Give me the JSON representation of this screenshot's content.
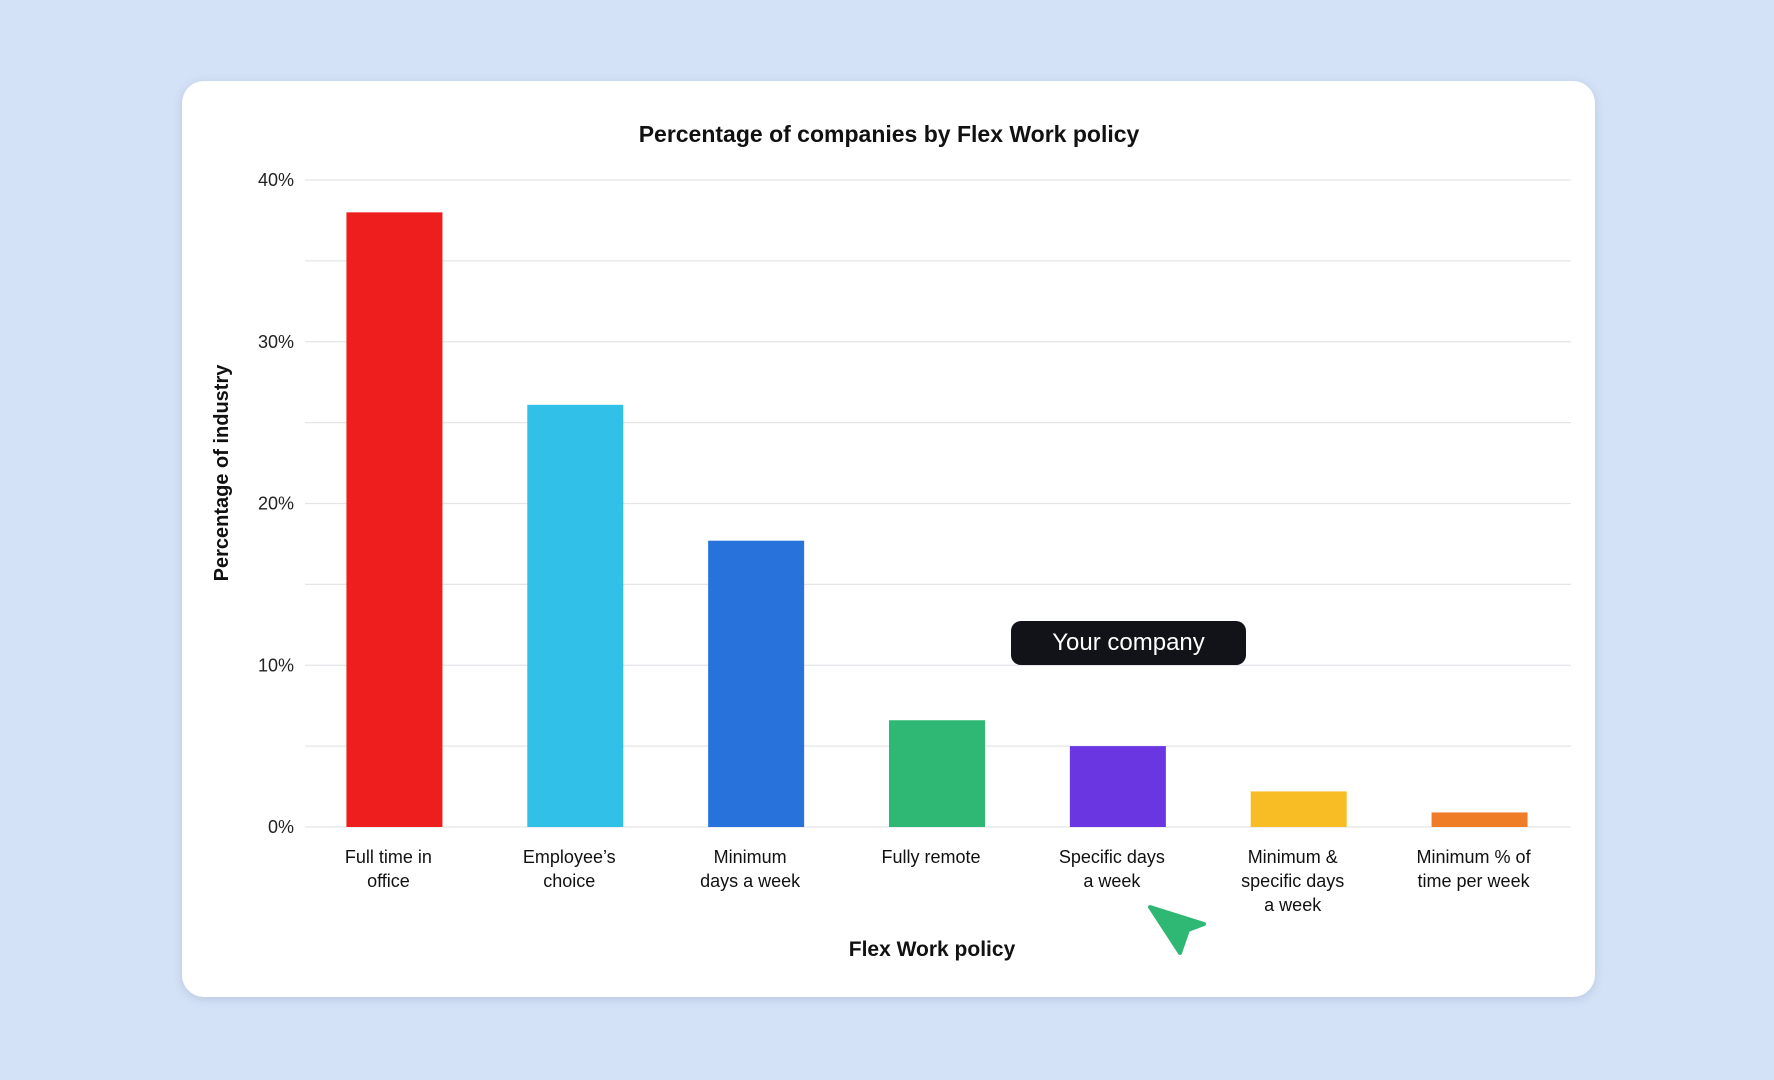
{
  "chart_data": {
    "type": "bar",
    "title": "Percentage of companies by Flex Work policy",
    "x_label": "Flex Work policy",
    "y_label": "Percentage of industry",
    "categories": [
      "Full time in\noffice",
      "Employee’s\nchoice",
      "Minimum\ndays a week",
      "Fully remote",
      "Specific days\na week",
      "Minimum &\nspecific days\na week",
      "Minimum % of\ntime per week"
    ],
    "values": [
      38,
      26.1,
      17.7,
      6.6,
      5,
      2.2,
      0.9
    ],
    "colors": [
      "#ee1e1e",
      "#31c0e8",
      "#2872dc",
      "#2fb873",
      "#6936e2",
      "#f8bd24",
      "#ef7d28"
    ],
    "ylim": [
      0,
      40
    ],
    "yticks": [
      {
        "value": 0,
        "label": "0%"
      },
      {
        "value": 10,
        "label": "10%"
      },
      {
        "value": 20,
        "label": "20%"
      },
      {
        "value": 30,
        "label": "30%"
      },
      {
        "value": 40,
        "label": "40%"
      }
    ],
    "minor_yticks": [
      5,
      15,
      25,
      35
    ],
    "grid": true,
    "annotation": "Your company"
  }
}
